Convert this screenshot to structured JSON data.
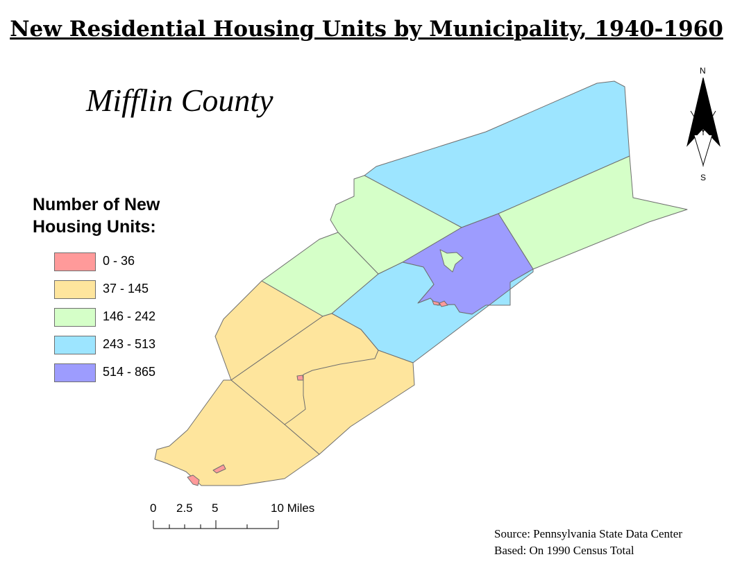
{
  "title": "New Residential Housing Units by Municipality, 1940-1960",
  "county_label": "Mifflin County",
  "legend": {
    "title_line1": "Number of New",
    "title_line2": "Housing Units:",
    "classes": [
      {
        "label": "0 - 36",
        "color": "#ff9a9a"
      },
      {
        "label": "37 - 145",
        "color": "#fee59d"
      },
      {
        "label": "146 - 242",
        "color": "#d5ffc8"
      },
      {
        "label": "243 - 513",
        "color": "#9de5ff"
      },
      {
        "label": "514 - 865",
        "color": "#9d9cfe"
      }
    ]
  },
  "scale_bar": {
    "ticks": [
      "0",
      "2.5",
      "5",
      "10 Miles"
    ]
  },
  "north_arrow": {
    "north": "N",
    "south": "S"
  },
  "source": {
    "line1": "Source: Pennsylvania State Data Center",
    "line2": "Based: On 1990 Census Total"
  },
  "regions": [
    {
      "id": "northeast-blue",
      "class": "243 - 513"
    },
    {
      "id": "east-green",
      "class": "146 - 242"
    },
    {
      "id": "north-green",
      "class": "146 - 242"
    },
    {
      "id": "west-green",
      "class": "146 - 242"
    },
    {
      "id": "central-purple",
      "class": "514 - 865"
    },
    {
      "id": "central-blue",
      "class": "243 - 513"
    },
    {
      "id": "west-yellow",
      "class": "37 - 145"
    },
    {
      "id": "central-yellow",
      "class": "37 - 145"
    },
    {
      "id": "southwest-yellow",
      "class": "37 - 145"
    },
    {
      "id": "south-yellow",
      "class": "37 - 145"
    },
    {
      "id": "boroughs-red",
      "class": "0 - 36"
    }
  ]
}
